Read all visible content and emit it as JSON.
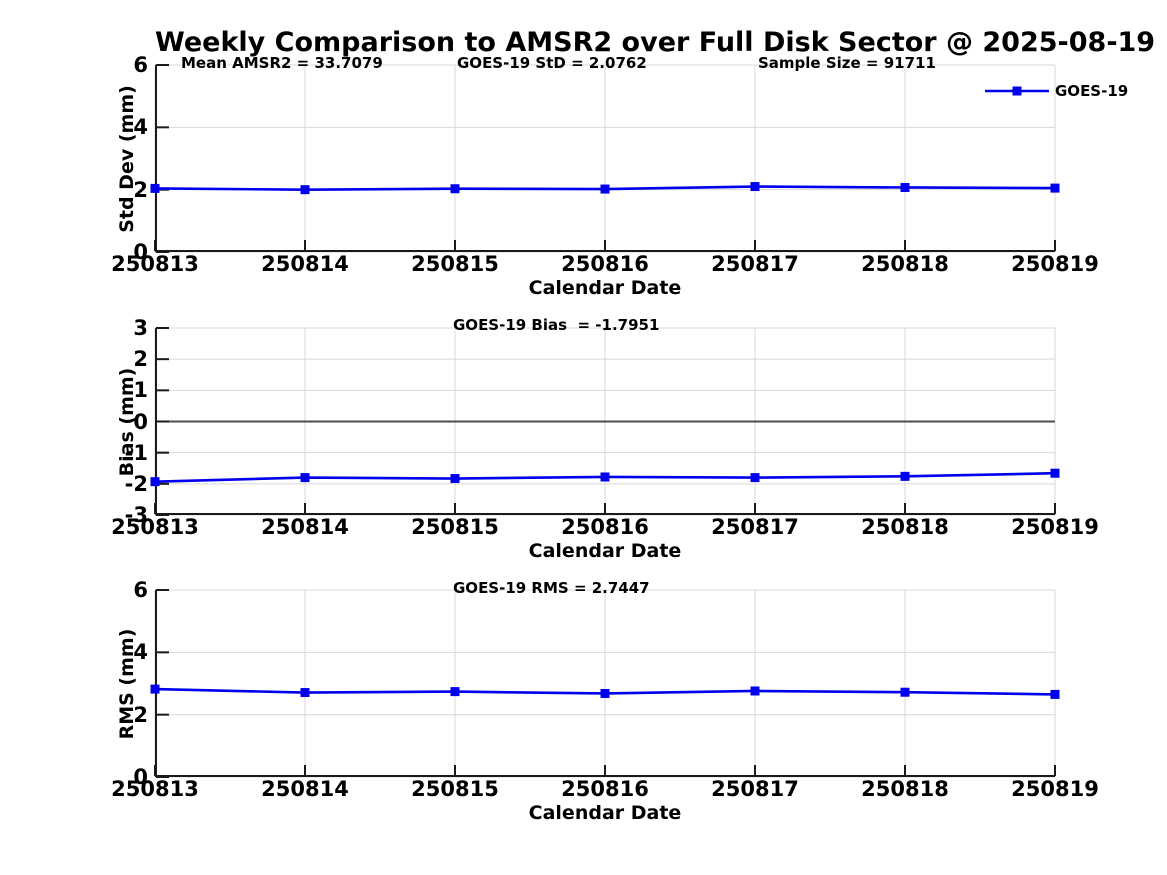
{
  "title": "Weekly Comparison to AMSR2 over Full Disk Sector @ 2025-08-19",
  "legend": {
    "label": "GOES-19"
  },
  "colors": {
    "line": "#0000EE",
    "grid": "#D8D8D8",
    "zero_line": "#4D4D4D",
    "axis": "#1A1A1A",
    "text": "#000000",
    "background": "#FFFFFF"
  },
  "chart_data": [
    {
      "id": "stddev",
      "type": "line",
      "categories": [
        "250813",
        "250814",
        "250815",
        "250816",
        "250817",
        "250818",
        "250819"
      ],
      "series": [
        {
          "name": "GOES-19",
          "values": [
            2.04,
            2.0,
            2.03,
            2.02,
            2.1,
            2.07,
            2.05
          ]
        }
      ],
      "annotations": [
        "Mean AMSR2 = 33.7079",
        "GOES-19 StD = 2.0762",
        "Sample Size = 91711"
      ],
      "xlabel": "Calendar Date",
      "ylabel": "Std Dev (mm)",
      "ylim": [
        0,
        6
      ],
      "yticks": [
        0,
        2,
        4,
        6
      ],
      "ytick_labels": [
        "0",
        "2",
        "4",
        "6"
      ],
      "grid": true,
      "zero_line": false,
      "legend_position": "top-right-outside"
    },
    {
      "id": "bias",
      "type": "line",
      "categories": [
        "250813",
        "250814",
        "250815",
        "250816",
        "250817",
        "250818",
        "250819"
      ],
      "series": [
        {
          "name": "GOES-19",
          "values": [
            -1.93,
            -1.8,
            -1.83,
            -1.78,
            -1.8,
            -1.76,
            -1.66
          ]
        }
      ],
      "annotations": [
        "GOES-19 Bias  = -1.7951"
      ],
      "xlabel": "Calendar Date",
      "ylabel": "Bias (mm)",
      "ylim": [
        -3,
        3
      ],
      "yticks": [
        -3,
        -2,
        -1,
        0,
        1,
        2,
        3
      ],
      "ytick_labels": [
        "-3",
        "-2",
        "-1",
        "0",
        "1",
        "2",
        "3"
      ],
      "grid": true,
      "zero_line": true,
      "legend_position": "none"
    },
    {
      "id": "rms",
      "type": "line",
      "categories": [
        "250813",
        "250814",
        "250815",
        "250816",
        "250817",
        "250818",
        "250819"
      ],
      "series": [
        {
          "name": "GOES-19",
          "values": [
            2.82,
            2.71,
            2.74,
            2.68,
            2.76,
            2.72,
            2.65
          ]
        }
      ],
      "annotations": [
        "GOES-19 RMS = 2.7447"
      ],
      "xlabel": "Calendar Date",
      "ylabel": "RMS (mm)",
      "ylim": [
        0,
        6
      ],
      "yticks": [
        0,
        2,
        4,
        6
      ],
      "ytick_labels": [
        "0",
        "2",
        "4",
        "6"
      ],
      "grid": true,
      "zero_line": false,
      "legend_position": "none"
    }
  ]
}
